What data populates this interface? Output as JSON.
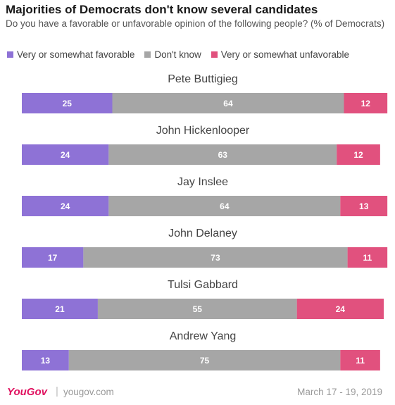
{
  "colors": {
    "favorable": "#8e72d6",
    "dont_know": "#a6a6a6",
    "unfavorable": "#e1517e"
  },
  "chart_data": {
    "type": "bar",
    "orientation": "horizontal-stacked",
    "title": "Majorities of Democrats don't know several candidates",
    "subtitle": "Do you have a favorable or unfavorable opinion of the following people? (% of Democrats)",
    "legend_position": "top",
    "categories": [
      "Pete Buttigieg",
      "John Hickenlooper",
      "Jay Inslee",
      "John Delaney",
      "Tulsi Gabbard",
      "Andrew Yang"
    ],
    "series": [
      {
        "name": "Very or somewhat favorable",
        "key": "favorable",
        "values": [
          25,
          24,
          24,
          17,
          21,
          13
        ]
      },
      {
        "name": "Don't know",
        "key": "dont_know",
        "values": [
          64,
          63,
          64,
          73,
          55,
          75
        ]
      },
      {
        "name": "Very or somewhat unfavorable",
        "key": "unfavorable",
        "values": [
          12,
          12,
          13,
          11,
          24,
          11
        ]
      }
    ]
  },
  "footer": {
    "logo": "YouGov",
    "separator": "|",
    "site": "yougov.com",
    "date": "March 17 - 19, 2019"
  }
}
